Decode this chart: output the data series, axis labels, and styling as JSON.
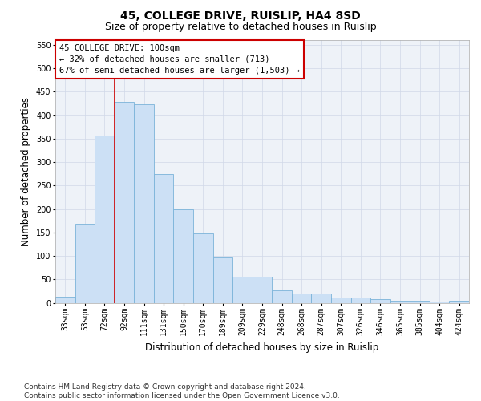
{
  "title": "45, COLLEGE DRIVE, RUISLIP, HA4 8SD",
  "subtitle": "Size of property relative to detached houses in Ruislip",
  "xlabel": "Distribution of detached houses by size in Ruislip",
  "ylabel": "Number of detached properties",
  "categories": [
    "33sqm",
    "53sqm",
    "72sqm",
    "92sqm",
    "111sqm",
    "131sqm",
    "150sqm",
    "170sqm",
    "189sqm",
    "209sqm",
    "229sqm",
    "248sqm",
    "268sqm",
    "287sqm",
    "307sqm",
    "326sqm",
    "346sqm",
    "365sqm",
    "385sqm",
    "404sqm",
    "424sqm"
  ],
  "values": [
    13,
    168,
    357,
    428,
    424,
    275,
    200,
    148,
    96,
    55,
    55,
    26,
    20,
    20,
    11,
    11,
    7,
    5,
    4,
    2,
    5
  ],
  "bar_color": "#cce0f5",
  "bar_edge_color": "#7ab3d9",
  "grid_color": "#d0d8e8",
  "annotation_line1": "45 COLLEGE DRIVE: 100sqm",
  "annotation_line2": "← 32% of detached houses are smaller (713)",
  "annotation_line3": "67% of semi-detached houses are larger (1,503) →",
  "annotation_box_edge_color": "#cc0000",
  "vline_color": "#cc0000",
  "vline_x": 2.5,
  "ylim": [
    0,
    560
  ],
  "yticks": [
    0,
    50,
    100,
    150,
    200,
    250,
    300,
    350,
    400,
    450,
    500,
    550
  ],
  "footer_text": "Contains HM Land Registry data © Crown copyright and database right 2024.\nContains public sector information licensed under the Open Government Licence v3.0.",
  "title_fontsize": 10,
  "subtitle_fontsize": 9,
  "axis_label_fontsize": 8.5,
  "tick_fontsize": 7,
  "annotation_fontsize": 7.5,
  "footer_fontsize": 6.5
}
